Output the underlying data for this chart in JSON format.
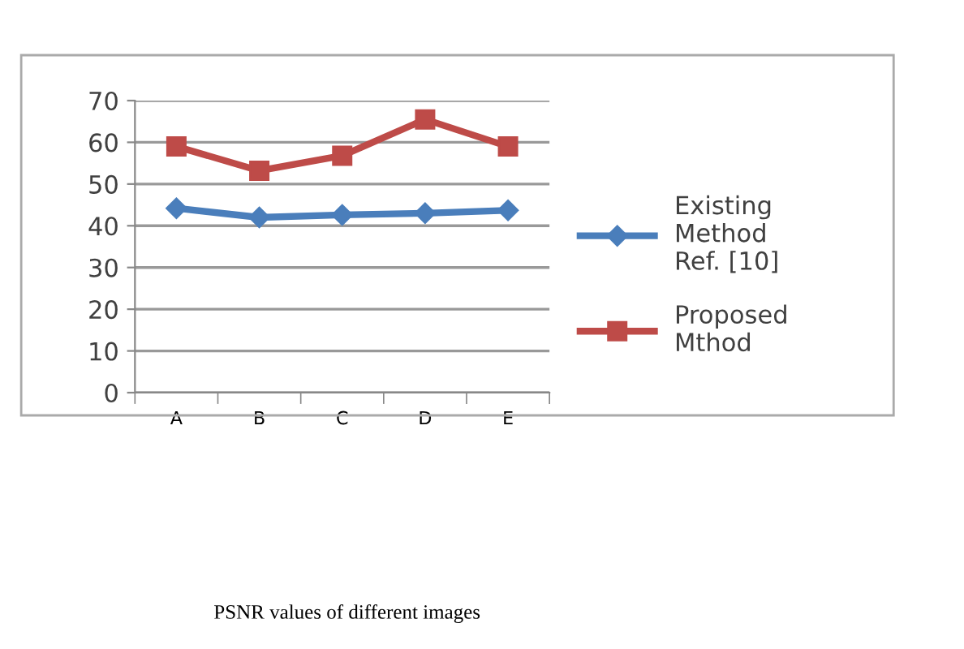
{
  "chart_data": {
    "type": "line",
    "categories": [
      "A",
      "B",
      "C",
      "D",
      "E"
    ],
    "series": [
      {
        "name": "Existing\nMethod\nRef. [10]",
        "color": "#4a7ebb",
        "marker": "diamond",
        "values": [
          44.2,
          42,
          42.6,
          43,
          43.7
        ]
      },
      {
        "name": "Proposed\nMthod",
        "color": "#be4b48",
        "marker": "square",
        "values": [
          59,
          53.2,
          56.8,
          65.5,
          59
        ]
      }
    ],
    "ylim": [
      0,
      70
    ],
    "yticks": [
      0,
      10,
      20,
      30,
      40,
      50,
      60,
      70
    ],
    "grid": "y",
    "legend": "right",
    "annotations": [
      "PSNR values of different images"
    ]
  }
}
